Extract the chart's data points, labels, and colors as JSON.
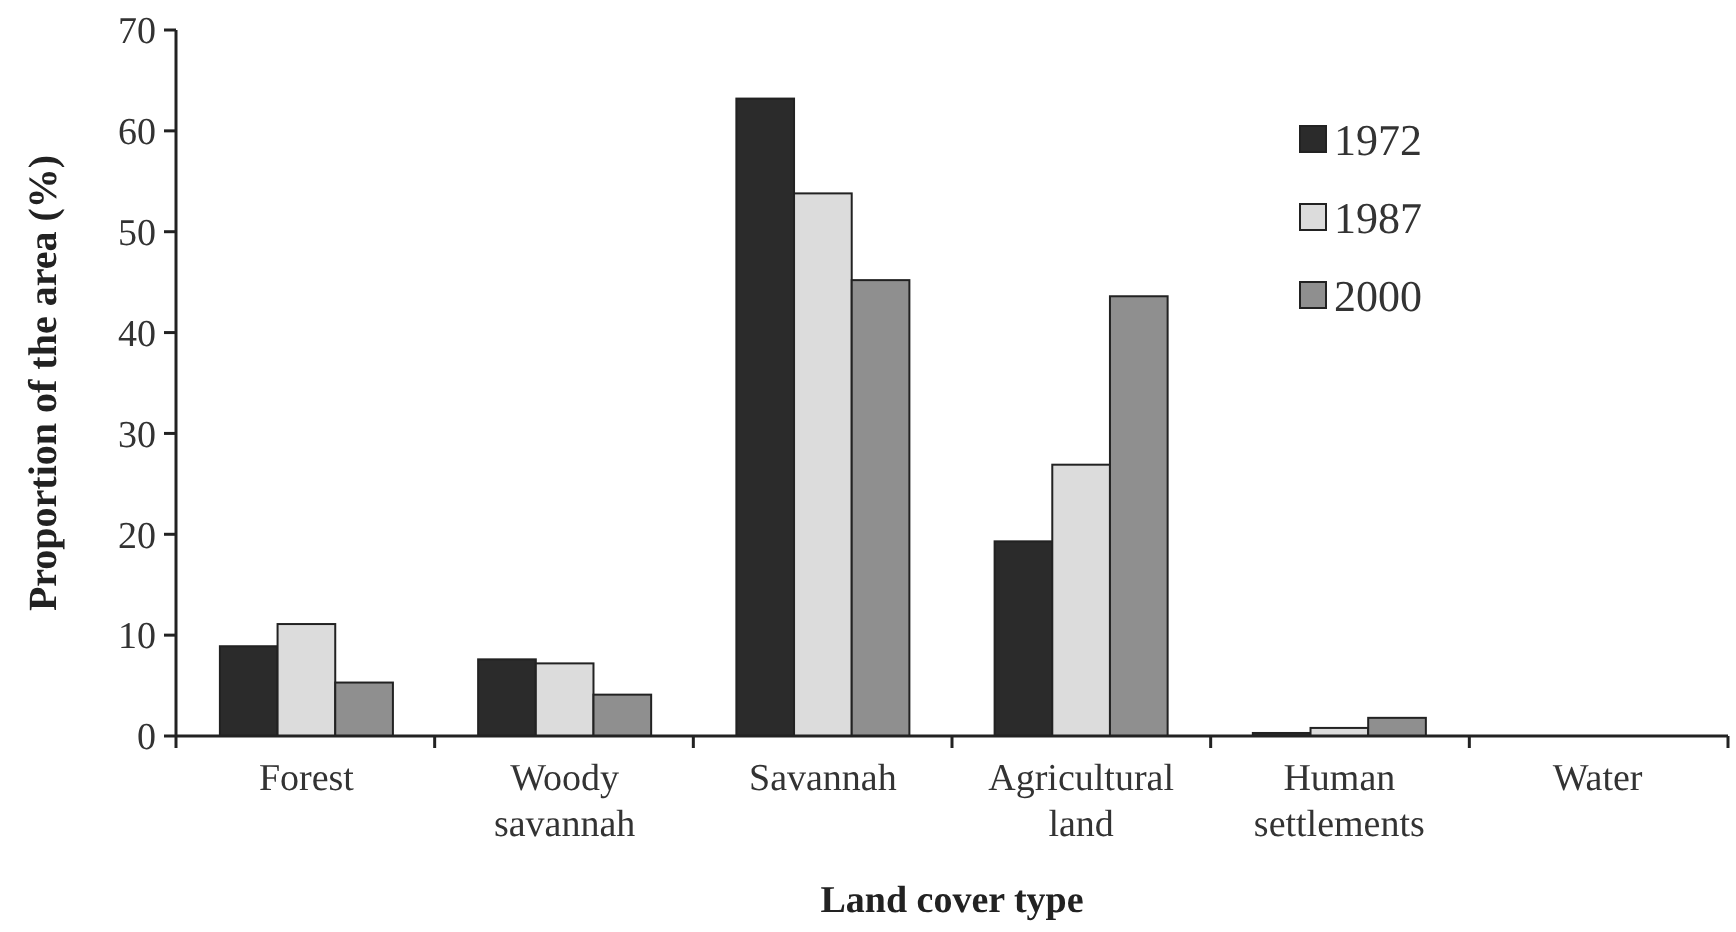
{
  "chart_data": {
    "type": "bar",
    "xlabel": "Land cover type",
    "ylabel": "Proportion of the area (%)",
    "categories": [
      "Forest",
      "Woody savannah",
      "Savannah",
      "Agricultural land",
      "Human settlements",
      "Water"
    ],
    "series": [
      {
        "name": "1972",
        "color": "#2b2b2b",
        "values": [
          8.9,
          7.6,
          63.2,
          19.3,
          0.3,
          null
        ]
      },
      {
        "name": "1987",
        "color": "#dcdcdc",
        "values": [
          11.1,
          7.2,
          53.8,
          26.9,
          0.8,
          null
        ]
      },
      {
        "name": "2000",
        "color": "#8f8f8f",
        "values": [
          5.3,
          4.1,
          45.2,
          43.6,
          1.8,
          null
        ]
      }
    ],
    "ylim": [
      0,
      70
    ],
    "yticks": [
      0,
      10,
      20,
      30,
      40,
      50,
      60,
      70
    ],
    "grid": false,
    "legend": "top right"
  }
}
